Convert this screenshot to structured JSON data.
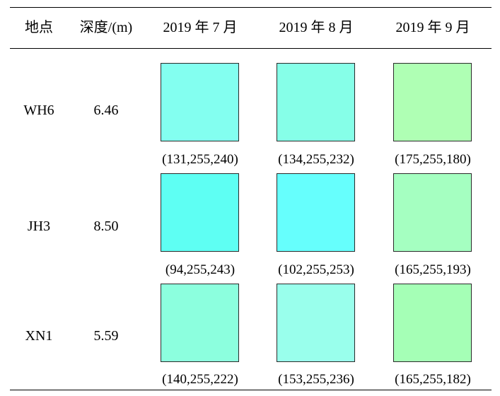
{
  "table": {
    "headers": {
      "location": "地点",
      "depth": "深度/(m)",
      "months": [
        "2019 年 7 月",
        "2019 年 8 月",
        "2019 年 9 月"
      ]
    },
    "rows": [
      {
        "location": "WH6",
        "depth": "6.46",
        "cells": [
          {
            "color": "#83FFF0",
            "label": "(131,255,240)"
          },
          {
            "color": "#86FFE8",
            "label": "(134,255,232)"
          },
          {
            "color": "#AFFFB4",
            "label": "(175,255,180)"
          }
        ]
      },
      {
        "location": "JH3",
        "depth": "8.50",
        "cells": [
          {
            "color": "#5EFFF3",
            "label": "(94,255,243)"
          },
          {
            "color": "#66FFFD",
            "label": "(102,255,253)"
          },
          {
            "color": "#A5FFC1",
            "label": "(165,255,193)"
          }
        ]
      },
      {
        "location": "XN1",
        "depth": "5.59",
        "cells": [
          {
            "color": "#8CFFDE",
            "label": "(140,255,222)"
          },
          {
            "color": "#99FFEC",
            "label": "(153,255,236)"
          },
          {
            "color": "#A5FFB6",
            "label": "(165,255,182)"
          }
        ]
      }
    ]
  }
}
